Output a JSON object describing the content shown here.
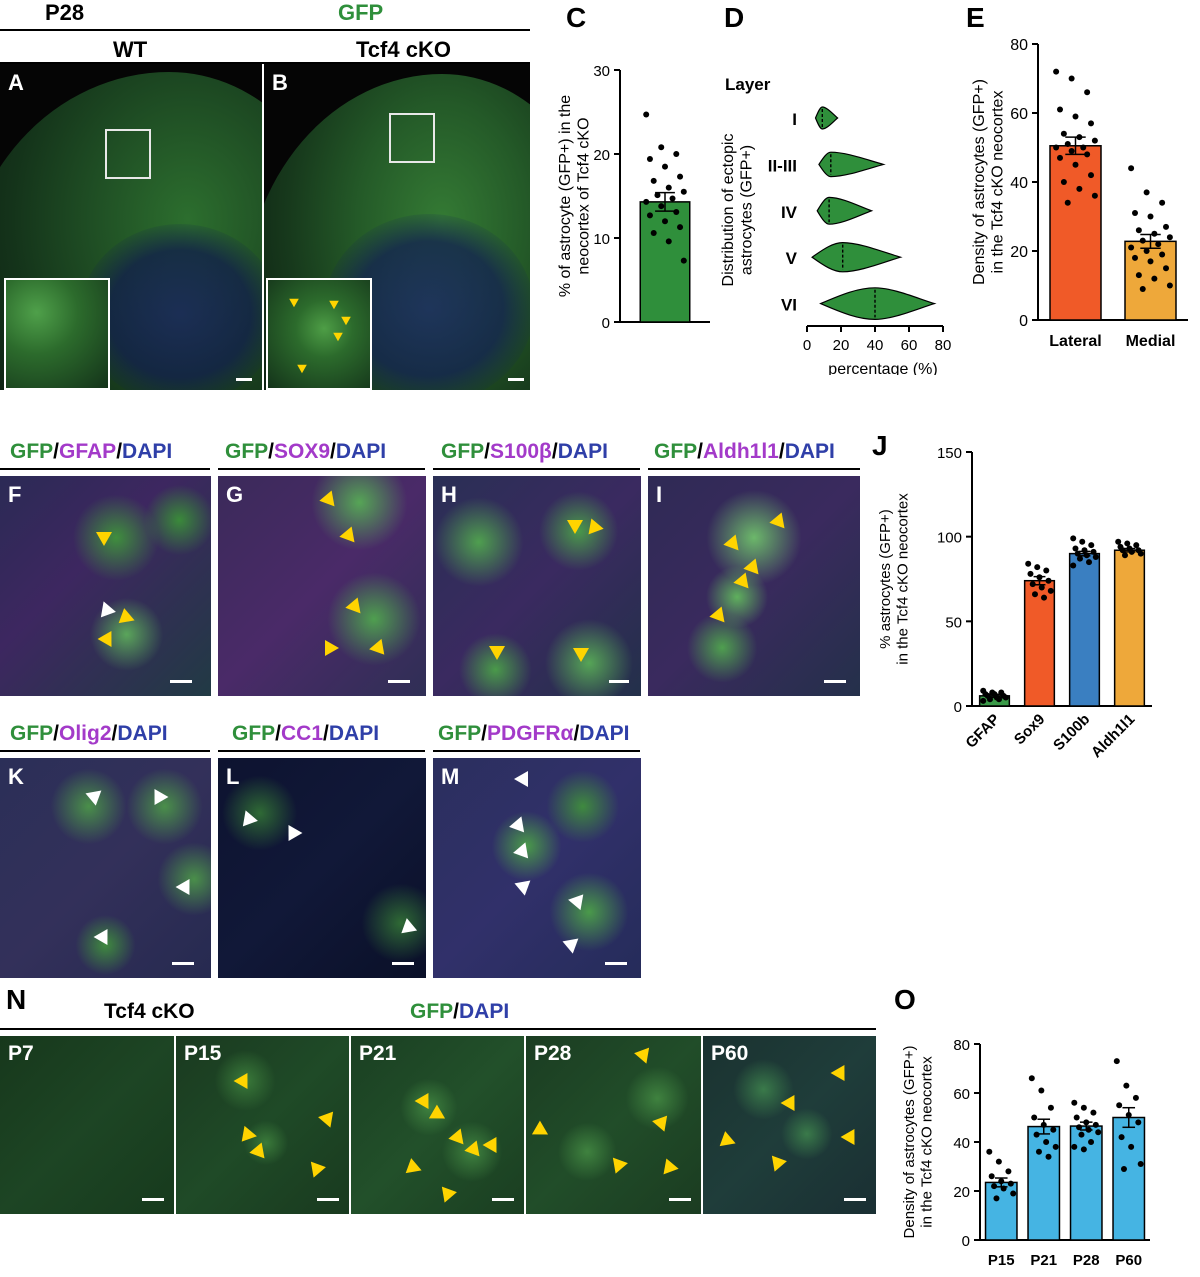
{
  "header": {
    "age": "P28",
    "marker": "GFP",
    "wt": "WT",
    "cko": "Tcf4 cKO"
  },
  "panel_letters": {
    "A": "A",
    "B": "B",
    "C": "C",
    "D": "D",
    "E": "E",
    "F": "F",
    "G": "G",
    "H": "H",
    "I": "I",
    "J": "J",
    "K": "K",
    "L": "L",
    "M": "M",
    "N": "N",
    "O": "O"
  },
  "stains": {
    "F": [
      "GFP",
      "/",
      "GFAP",
      "/",
      "DAPI"
    ],
    "G": [
      "GFP",
      "/",
      "SOX9",
      "/",
      "DAPI"
    ],
    "H": [
      "GFP",
      "/",
      "S100β",
      "/",
      "DAPI"
    ],
    "I": [
      "GFP",
      "/",
      "Aldh1l1",
      "/",
      "DAPI"
    ],
    "K": [
      "GFP",
      "/",
      "Olig2",
      "/",
      "DAPI"
    ],
    "L": [
      "GFP",
      "/",
      "CC1",
      "/",
      "DAPI"
    ],
    "M": [
      "GFP",
      "/",
      "PDGFRα",
      "/",
      "DAPI"
    ]
  },
  "row_n": {
    "title": "Tcf4 cKO",
    "marker_a": "GFP",
    "sep": "/",
    "marker_b": "DAPI",
    "ages": [
      "P7",
      "P15",
      "P21",
      "P28",
      "P60"
    ]
  },
  "colors": {
    "gfp": "#2f8f3b",
    "magenta": "#a33ac9",
    "dapi": "#2f3fa8",
    "red": "#f05a28",
    "blue": "#3a7fc1",
    "orange": "#eea83a",
    "cyan": "#45b4e3"
  },
  "chart_data": [
    {
      "id": "C",
      "type": "bar",
      "ylabel": "% of astrocyte (GFP+) in the neocortex of Tcf4 cKO",
      "ylim": [
        0,
        30
      ],
      "yticks": [
        0,
        10,
        20,
        30
      ],
      "categories": [
        ""
      ],
      "values": [
        14.3
      ],
      "sem": [
        1.1
      ],
      "points": [
        24.7,
        20.8,
        20.0,
        19.4,
        18.5,
        17.3,
        16.8,
        16.0,
        15.5,
        15.1,
        14.7,
        14.3,
        13.8,
        13.1,
        12.7,
        12.0,
        11.3,
        10.6,
        9.6,
        7.3
      ]
    },
    {
      "id": "D",
      "type": "violin",
      "title": "Layer",
      "ylabel": "Distribution of ectopic astrocytes (GFP+)",
      "xlabel": "percentage (%)",
      "xlim": [
        0,
        80
      ],
      "xticks": [
        0,
        20,
        40,
        60,
        80
      ],
      "categories": [
        "I",
        "II-III",
        "IV",
        "V",
        "VI"
      ],
      "ranges": [
        [
          5,
          18
        ],
        [
          7,
          45
        ],
        [
          6,
          38
        ],
        [
          3,
          55
        ],
        [
          8,
          75
        ]
      ],
      "medians": [
        9,
        14,
        13,
        21,
        40
      ]
    },
    {
      "id": "E",
      "type": "bar",
      "ylabel": "Density of astrocytes (GFP+) in the Tcf4 cKO neocortex",
      "ylim": [
        0,
        80
      ],
      "yticks": [
        0,
        20,
        40,
        60,
        80
      ],
      "categories": [
        "Lateral",
        "Medial"
      ],
      "values": [
        50.5,
        22.8
      ],
      "sem": [
        2.5,
        2.0
      ],
      "points": [
        [
          72,
          70,
          66,
          61,
          59,
          57,
          54,
          53,
          52,
          51,
          50,
          50,
          49,
          48,
          47,
          45,
          42,
          40,
          38,
          36,
          34
        ],
        [
          44,
          37,
          34,
          31,
          30,
          27,
          26,
          25,
          24,
          23,
          22,
          21,
          20,
          19,
          18,
          17,
          15,
          13,
          12,
          10,
          9
        ]
      ]
    },
    {
      "id": "J",
      "type": "bar",
      "ylabel": "% astrocytes (GFP+) in the Tcf4 cKO neocortex",
      "ylim": [
        0,
        150
      ],
      "yticks": [
        0,
        50,
        100,
        150
      ],
      "categories": [
        "GFAP",
        "Sox9",
        "S100b",
        "Aldh1l1"
      ],
      "values": [
        6,
        74,
        90,
        92
      ],
      "sem": [
        0.9,
        2.4,
        1.3,
        1.0
      ],
      "points": [
        [
          9,
          8,
          8,
          7,
          7,
          6,
          6,
          5,
          5,
          4,
          4,
          3
        ],
        [
          84,
          82,
          80,
          78,
          76,
          74,
          72,
          70,
          68,
          66,
          64
        ],
        [
          99,
          97,
          95,
          93,
          92,
          91,
          90,
          89,
          88,
          87,
          85,
          83
        ],
        [
          97,
          96,
          95,
          94,
          93,
          92,
          92,
          91,
          90,
          89
        ]
      ]
    },
    {
      "id": "O",
      "type": "bar",
      "ylabel": "Density of astrocytes (GFP+) in the Tcf4 cKO neocortex",
      "ylim": [
        0,
        80
      ],
      "yticks": [
        0,
        20,
        40,
        60,
        80
      ],
      "categories": [
        "P15",
        "P21",
        "P28",
        "P60"
      ],
      "values": [
        23.5,
        46.3,
        46.5,
        50
      ],
      "sem": [
        1.8,
        3.0,
        1.6,
        4.0
      ],
      "points": [
        [
          36,
          32,
          28,
          26,
          24,
          23,
          22,
          21,
          19,
          17
        ],
        [
          66,
          61,
          54,
          50,
          47,
          45,
          43,
          40,
          38,
          36,
          34
        ],
        [
          56,
          54,
          52,
          50,
          48,
          47,
          46,
          45,
          44,
          43,
          40,
          38,
          37
        ],
        [
          73,
          63,
          58,
          55,
          51,
          48,
          42,
          38,
          31,
          29
        ]
      ]
    }
  ]
}
